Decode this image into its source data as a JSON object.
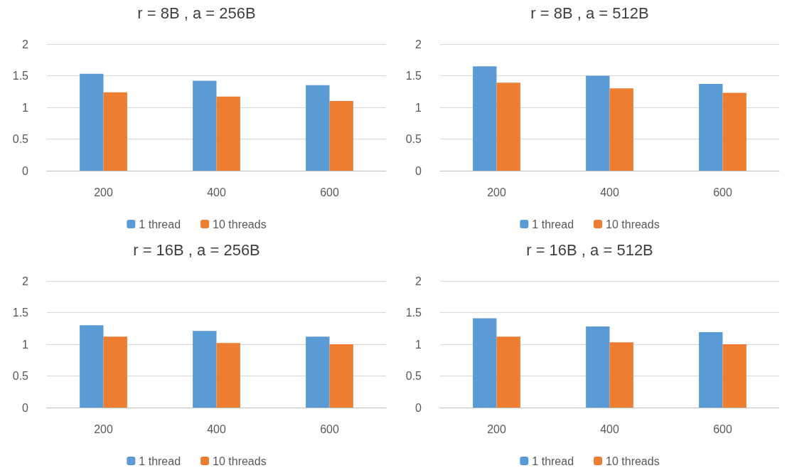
{
  "chart_data": [
    {
      "type": "bar",
      "title": "r = 8B , a = 256B",
      "categories": [
        "200",
        "400",
        "600"
      ],
      "series": [
        {
          "name": "1 thread",
          "color": "#5b9bd5",
          "values": [
            1.53,
            1.42,
            1.35
          ]
        },
        {
          "name": "10 threads",
          "color": "#ed7d31",
          "values": [
            1.24,
            1.17,
            1.1
          ]
        }
      ],
      "ylim": [
        0,
        2
      ],
      "yticks": [
        0,
        0.5,
        1,
        1.5,
        2
      ],
      "grid": "y",
      "legend": "bottom"
    },
    {
      "type": "bar",
      "title": "r = 8B , a = 512B",
      "categories": [
        "200",
        "400",
        "600"
      ],
      "series": [
        {
          "name": "1 thread",
          "color": "#5b9bd5",
          "values": [
            1.65,
            1.5,
            1.37
          ]
        },
        {
          "name": "10 threads",
          "color": "#ed7d31",
          "values": [
            1.39,
            1.3,
            1.23
          ]
        }
      ],
      "ylim": [
        0,
        2
      ],
      "yticks": [
        0,
        0.5,
        1,
        1.5,
        2
      ],
      "grid": "y",
      "legend": "bottom"
    },
    {
      "type": "bar",
      "title": "r = 16B , a = 256B",
      "categories": [
        "200",
        "400",
        "600"
      ],
      "series": [
        {
          "name": "1 thread",
          "color": "#5b9bd5",
          "values": [
            1.3,
            1.21,
            1.12
          ]
        },
        {
          "name": "10 threads",
          "color": "#ed7d31",
          "values": [
            1.12,
            1.02,
            1.0
          ]
        }
      ],
      "ylim": [
        0,
        2
      ],
      "yticks": [
        0,
        0.5,
        1,
        1.5,
        2
      ],
      "grid": "y",
      "legend": "bottom"
    },
    {
      "type": "bar",
      "title": "r = 16B , a = 512B",
      "categories": [
        "200",
        "400",
        "600"
      ],
      "series": [
        {
          "name": "1 thread",
          "color": "#5b9bd5",
          "values": [
            1.41,
            1.28,
            1.19
          ]
        },
        {
          "name": "10 threads",
          "color": "#ed7d31",
          "values": [
            1.12,
            1.03,
            1.0
          ]
        }
      ],
      "ylim": [
        0,
        2
      ],
      "yticks": [
        0,
        0.5,
        1,
        1.5,
        2
      ],
      "grid": "y",
      "legend": "bottom"
    }
  ]
}
